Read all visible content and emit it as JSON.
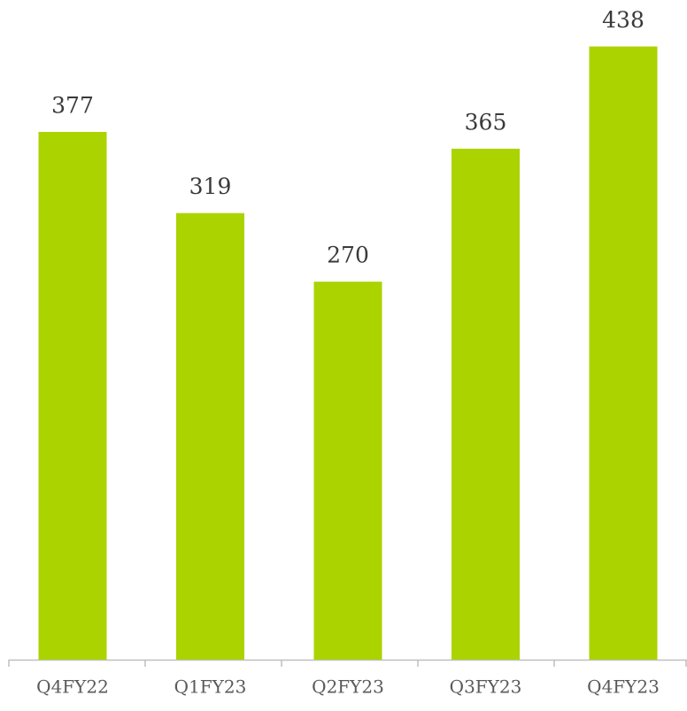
{
  "chart_data": {
    "type": "bar",
    "categories": [
      "Q4FY22",
      "Q1FY23",
      "Q2FY23",
      "Q3FY23",
      "Q4FY23"
    ],
    "values": [
      377,
      319,
      270,
      365,
      438
    ],
    "color": "#abd300"
  }
}
